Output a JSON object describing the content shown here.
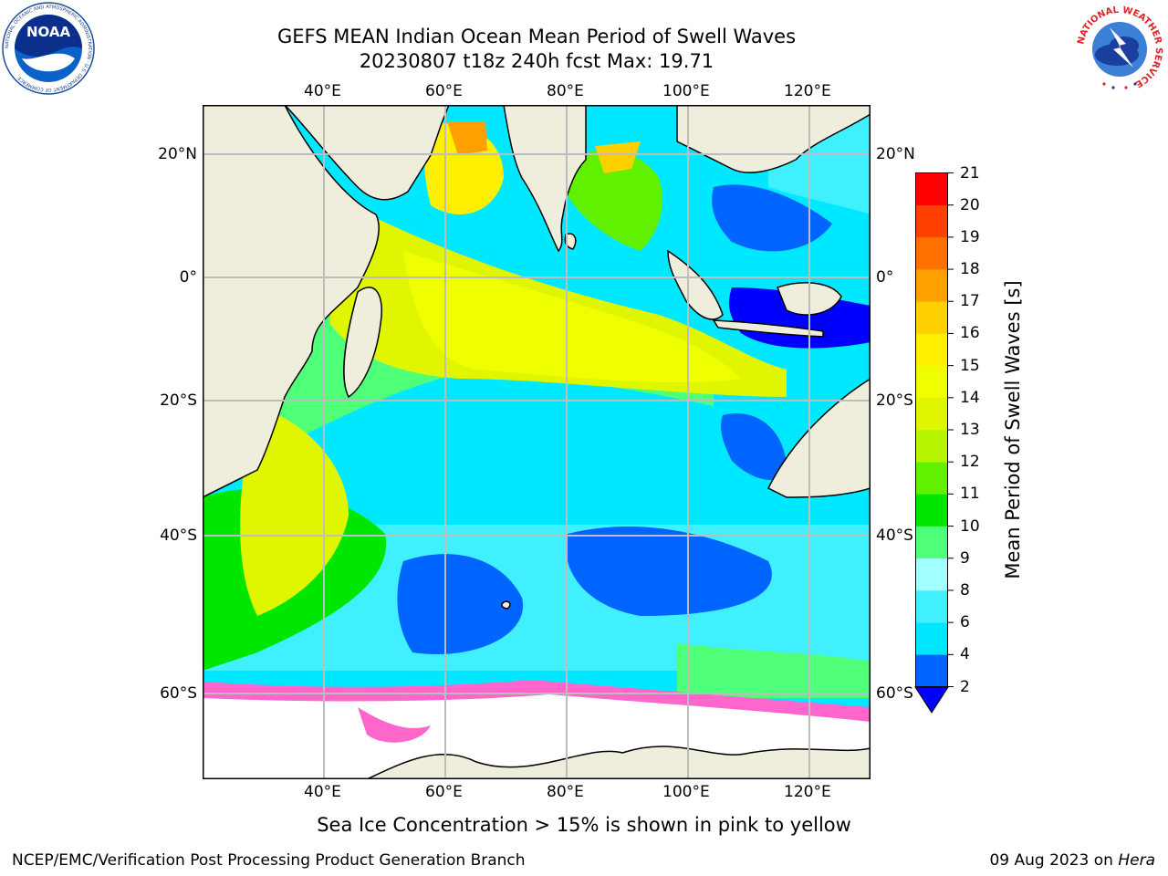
{
  "title": {
    "line1": "GEFS MEAN Indian Ocean Mean Period of Swell Waves",
    "line2": "20230807 t18z 240h fcst   Max: 19.71"
  },
  "map": {
    "top_lon_labels": [
      "40°E",
      "60°E",
      "80°E",
      "100°E",
      "120°E"
    ],
    "bottom_lon_labels": [
      "40°E",
      "60°E",
      "80°E",
      "100°E",
      "120°E"
    ],
    "left_lat_labels": [
      "20°N",
      "0°",
      "20°S",
      "40°S",
      "60°S"
    ],
    "right_lat_labels": [
      "20°N",
      "0°",
      "20°S",
      "40°S",
      "60°S"
    ],
    "colors": {
      "land": "#efeddc",
      "ice_white": "#ffffff",
      "grid": "#bdbdbd"
    }
  },
  "colorbar": {
    "label": "Mean Period of Swell Waves [s]",
    "ticks": [
      "2",
      "4",
      "6",
      "8",
      "9",
      "10",
      "11",
      "12",
      "13",
      "14",
      "15",
      "16",
      "17",
      "18",
      "19",
      "20",
      "21"
    ],
    "colors": [
      "#0064ff",
      "#00e6ff",
      "#40f0ff",
      "#a0ffff",
      "#50ff78",
      "#00e600",
      "#60f000",
      "#b8f500",
      "#e0f500",
      "#f0ff00",
      "#fff000",
      "#ffd000",
      "#ffa000",
      "#ff7000",
      "#ff4000",
      "#ff0000"
    ],
    "under_color": "#0000ff"
  },
  "caption": "Sea Ice Concentration > 15% is shown in pink to yellow",
  "footer": {
    "left": "NCEP/EMC/Verification Post Processing Product Generation Branch",
    "right_date": "09 Aug 2023 on ",
    "right_host": "Hera"
  },
  "logos": {
    "noaa_text": "NOAA",
    "noaa_ring": "NATIONAL OCEANIC AND ATMOSPHERIC ADMINISTRATION · U.S. DEPARTMENT OF COMMERCE",
    "nws_ring": "NATIONAL WEATHER SERVICE"
  }
}
